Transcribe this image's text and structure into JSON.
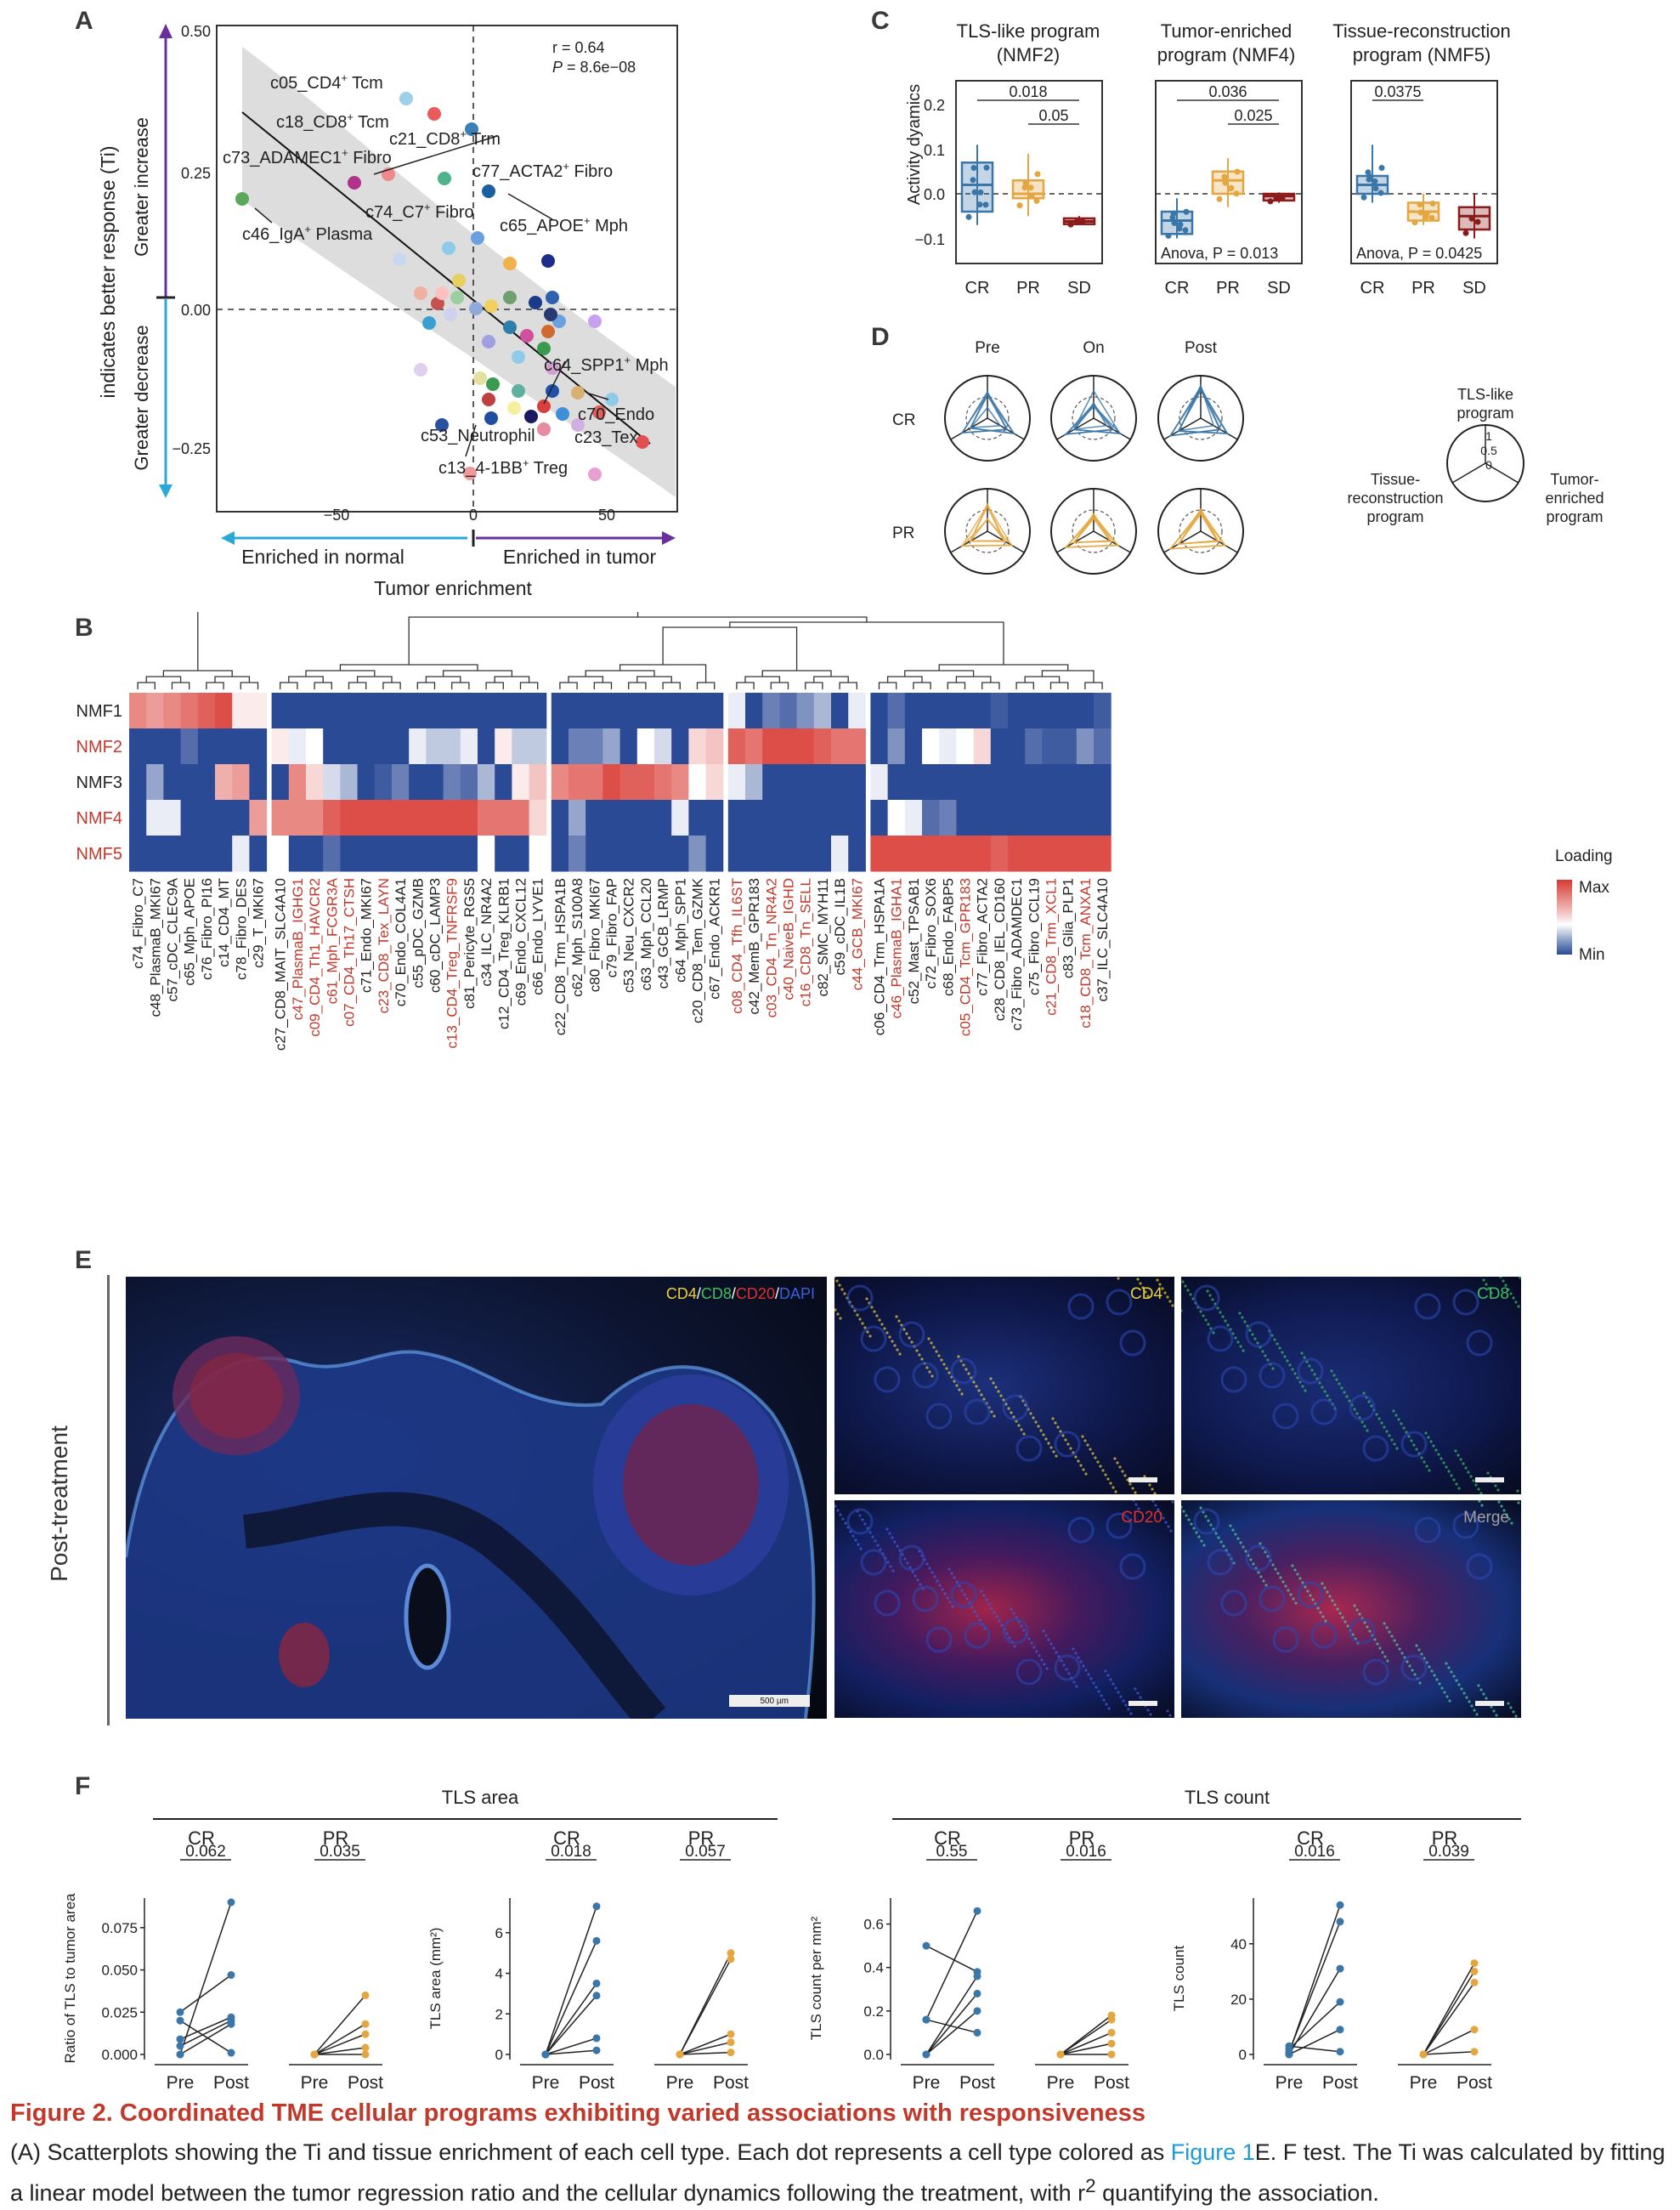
{
  "panels": {
    "a": "A",
    "b": "B",
    "c": "C",
    "d": "D",
    "e": "E",
    "f": "F"
  },
  "panelA": {
    "stats_r": "r = 0.64",
    "stats_p_label": "P",
    "stats_p_value": " = 8.6e−08",
    "ylabel": "indicates better response (Ti)",
    "y_top_label": "Greater increase",
    "y_bottom_label": "Greater decrease",
    "xlabel": "Tumor enrichment",
    "x_left_label": "Enriched in normal",
    "x_right_label": "Enriched in tumor",
    "yticks": [
      "0.50",
      "0.25",
      "0.00",
      "−0.25"
    ],
    "xticks": [
      "−50",
      "0",
      "50"
    ],
    "labels": [
      {
        "base": "c05_CD4",
        "sup": "+",
        "rest": " Tcm"
      },
      {
        "base": "c18_CD8",
        "sup": "+",
        "rest": " Tcm"
      },
      {
        "base": "c21_CD8",
        "sup": "+",
        "rest": " Trm"
      },
      {
        "base": "c73_ADAMEC1",
        "sup": "+",
        "rest": " Fibro"
      },
      {
        "base": "c77_ACTA2",
        "sup": "+",
        "rest": " Fibro"
      },
      {
        "base": "c74_C7",
        "sup": "+",
        "rest": " Fibro"
      },
      {
        "base": "c65_APOE",
        "sup": "+",
        "rest": " Mph"
      },
      {
        "base": "c46_IgA",
        "sup": "+",
        "rest": " Plasma"
      },
      {
        "base": "c64_SPP1",
        "sup": "+",
        "rest": " Mph"
      },
      {
        "base": "c70_Endo",
        "sup": "",
        "rest": ""
      },
      {
        "base": "c53_Neutrophil",
        "sup": "",
        "rest": ""
      },
      {
        "base": "c23_Tex",
        "sup": "",
        "rest": ""
      },
      {
        "base": "c13_4-1BB",
        "sup": "+",
        "rest": " Treg"
      }
    ]
  },
  "panelC": {
    "titles": [
      [
        "TLS-like program",
        "(NMF2)"
      ],
      [
        "Tumor-enriched",
        "program (NMF4)"
      ],
      [
        "Tissue-reconstruction",
        "program (NMF5)"
      ]
    ],
    "ylabel": "Activity dyamics",
    "yticks": [
      "0.2",
      "0.1",
      "0.0",
      "−0.1"
    ],
    "groups": [
      "CR",
      "PR",
      "SD"
    ],
    "pvals": [
      [
        "0.018",
        "0.05"
      ],
      [
        "0.036",
        "0.025"
      ],
      [
        "0.0375"
      ]
    ],
    "anova": [
      "",
      "Anova, P = 0.013",
      "Anova, P = 0.0425"
    ]
  },
  "panelD": {
    "col_labels": [
      "Pre",
      "On",
      "Post"
    ],
    "row_labels": [
      "CR",
      "PR"
    ],
    "legend_top": [
      "TLS-like",
      "program"
    ],
    "legend_left": [
      "Tissue-",
      "reconstruction",
      "program"
    ],
    "legend_right": [
      "Tumor-",
      "enriched",
      "program"
    ],
    "legend_ticks": [
      "1",
      "0.5",
      "0"
    ]
  },
  "panelB": {
    "rows": [
      "NMF1",
      "NMF2",
      "NMF3",
      "NMF4",
      "NMF5"
    ],
    "row_highlight": [
      false,
      true,
      false,
      true,
      true
    ],
    "legend_title": "Loading",
    "legend_max": "Max",
    "legend_min": "Min",
    "columns": [
      {
        "name": "c74_Fibro_C7",
        "red": false
      },
      {
        "name": "c48_PlasmaB_MKI67",
        "red": false
      },
      {
        "name": "c57_cDC_CLEC9A",
        "red": false
      },
      {
        "name": "c65_Mph_APOE",
        "red": false
      },
      {
        "name": "c76_Fibro_PI16",
        "red": false
      },
      {
        "name": "c14_CD4_MT",
        "red": false
      },
      {
        "name": "c78_Fibro_DES",
        "red": false
      },
      {
        "name": "c29_T_MKI67",
        "red": false
      },
      {
        "name": "c27_CD8_MAIT_SLC4A10",
        "red": false
      },
      {
        "name": "c47_PlasmaB_IGHG1",
        "red": true
      },
      {
        "name": "c09_CD4_Th1_HAVCR2",
        "red": true
      },
      {
        "name": "c61_Mph_FCGR3A",
        "red": true
      },
      {
        "name": "c07_CD4_Th17_CTSH",
        "red": true
      },
      {
        "name": "c71_Endo_MKI67",
        "red": false
      },
      {
        "name": "c23_CD8_Tex_LAYN",
        "red": true
      },
      {
        "name": "c70_Endo_COL4A1",
        "red": false
      },
      {
        "name": "c55_pDC_GZMB",
        "red": false
      },
      {
        "name": "c60_cDC_LAMP3",
        "red": false
      },
      {
        "name": "c13_CD4_Treg_TNFRSF9",
        "red": true
      },
      {
        "name": "c81_Pericyte_RGS5",
        "red": false
      },
      {
        "name": "c34_ILC_NR4A2",
        "red": false
      },
      {
        "name": "c12_CD4_Treg_KLRB1",
        "red": false
      },
      {
        "name": "c69_Endo_CXCL12",
        "red": false
      },
      {
        "name": "c66_Endo_LYVE1",
        "red": false
      },
      {
        "name": "c22_CD8_Trm_HSPA1B",
        "red": false
      },
      {
        "name": "c62_Mph_S100A8",
        "red": false
      },
      {
        "name": "c80_Fibro_MKI67",
        "red": false
      },
      {
        "name": "c79_Fibro_FAP",
        "red": false
      },
      {
        "name": "c53_Neu_CXCR2",
        "red": false
      },
      {
        "name": "c63_Mph_CCL20",
        "red": false
      },
      {
        "name": "c43_GCB_LRMP",
        "red": false
      },
      {
        "name": "c64_Mph_SPP1",
        "red": false
      },
      {
        "name": "c20_CD8_Tem_GZMK",
        "red": false
      },
      {
        "name": "c67_Endo_ACKR1",
        "red": false
      },
      {
        "name": "c08_CD4_Tfh_IL6ST",
        "red": true
      },
      {
        "name": "c42_MemB_GPR183",
        "red": false
      },
      {
        "name": "c03_CD4_Tn_NR4A2",
        "red": true
      },
      {
        "name": "c40_NaiveB_IGHD",
        "red": true
      },
      {
        "name": "c16_CD8_Tn_SELL",
        "red": true
      },
      {
        "name": "c82_SMC_MYH11",
        "red": false
      },
      {
        "name": "c59_cDC_IL1B",
        "red": false
      },
      {
        "name": "c44_GCB_MKI67",
        "red": true
      },
      {
        "name": "c06_CD4_Trm_HSPA1A",
        "red": false
      },
      {
        "name": "c46_PlasmaB_IGHA1",
        "red": true
      },
      {
        "name": "c52_Mast_TPSAB1",
        "red": false
      },
      {
        "name": "c72_Fibro_SOX6",
        "red": false
      },
      {
        "name": "c68_Endo_FABP5",
        "red": false
      },
      {
        "name": "c05_CD4_Tcm_GPR183",
        "red": true
      },
      {
        "name": "c77_Fibro_ACTA2",
        "red": false
      },
      {
        "name": "c28_CD8_IEL_CD160",
        "red": false
      },
      {
        "name": "c73_Fibro_ADAMDEC1",
        "red": false
      },
      {
        "name": "c75_Fibro_CCL19",
        "red": false
      },
      {
        "name": "c21_CD8_Trm_XCL1",
        "red": true
      },
      {
        "name": "c83_Glia_PLP1",
        "red": false
      },
      {
        "name": "c18_CD8_Tcm_ANXA1",
        "red": true
      },
      {
        "name": "c37_ILC_SLC4A10",
        "red": false
      }
    ]
  },
  "panelE": {
    "row_label": "Post-treatment",
    "main_channels": [
      {
        "text": "CD4",
        "color": "#e8d23a"
      },
      {
        "text": "/",
        "color": "#ffffff"
      },
      {
        "text": "CD8",
        "color": "#3fbf5f"
      },
      {
        "text": "/",
        "color": "#ffffff"
      },
      {
        "text": "CD20",
        "color": "#e0312d"
      },
      {
        "text": "/",
        "color": "#ffffff"
      },
      {
        "text": "DAPI",
        "color": "#3a5fe0"
      }
    ],
    "tiles": [
      {
        "label": "CD4",
        "color": "#e8d23a"
      },
      {
        "label": "CD8",
        "color": "#3fbf5f"
      },
      {
        "label": "CD20",
        "color": "#e0312d"
      },
      {
        "label": "Merge",
        "color": "#a0a0a0"
      }
    ],
    "scale_main": "500 µm"
  },
  "panelF": {
    "group_titles": [
      "TLS area",
      "TLS count"
    ],
    "sub_groups": [
      "CR",
      "PR",
      "CR",
      "PR",
      "CR",
      "PR",
      "CR",
      "PR"
    ],
    "pvals": [
      "0.062",
      "0.035",
      "0.018",
      "0.057",
      "0.55",
      "0.016",
      "0.016",
      "0.039"
    ],
    "ylabels": [
      "Ratio of TLS to tumor area",
      "TLS area (mm²)",
      "TLS count per mm²",
      "TLS count"
    ],
    "xticks": [
      "Pre",
      "Post"
    ],
    "yticks": [
      [
        "0.075",
        "0.050",
        "0.025",
        "0.000"
      ],
      [
        "6",
        "4",
        "2",
        "0"
      ],
      [
        "0.6",
        "0.4",
        "0.2",
        "0.0"
      ],
      [
        "40",
        "20",
        "0"
      ]
    ]
  },
  "caption": {
    "title": "Figure 2.  Coordinated TME cellular programs exhibiting varied associations with responsiveness",
    "body_1": "(A) Scatterplots showing the Ti and tissue enrichment of each cell type. Each dot represents a cell type colored as ",
    "link": "Figure 1",
    "body_2": "E. F test. The Ti was calculated by fitting",
    "body_3": "a linear model between the tumor regression ratio and the cellular dynamics following the treatment, with r",
    "body_sup": "2",
    "body_4": " quantifying the association."
  },
  "colors": {
    "cr_blue": "#3a76a8",
    "pr_gold": "#e3a640",
    "sd_red": "#8b1a1a",
    "heat_max": "#d83a32",
    "heat_min": "#2b4a96",
    "trend_purple": "#6a2f9e",
    "trend_cyan": "#2aa8d8",
    "caption_red": "#c0392b"
  }
}
